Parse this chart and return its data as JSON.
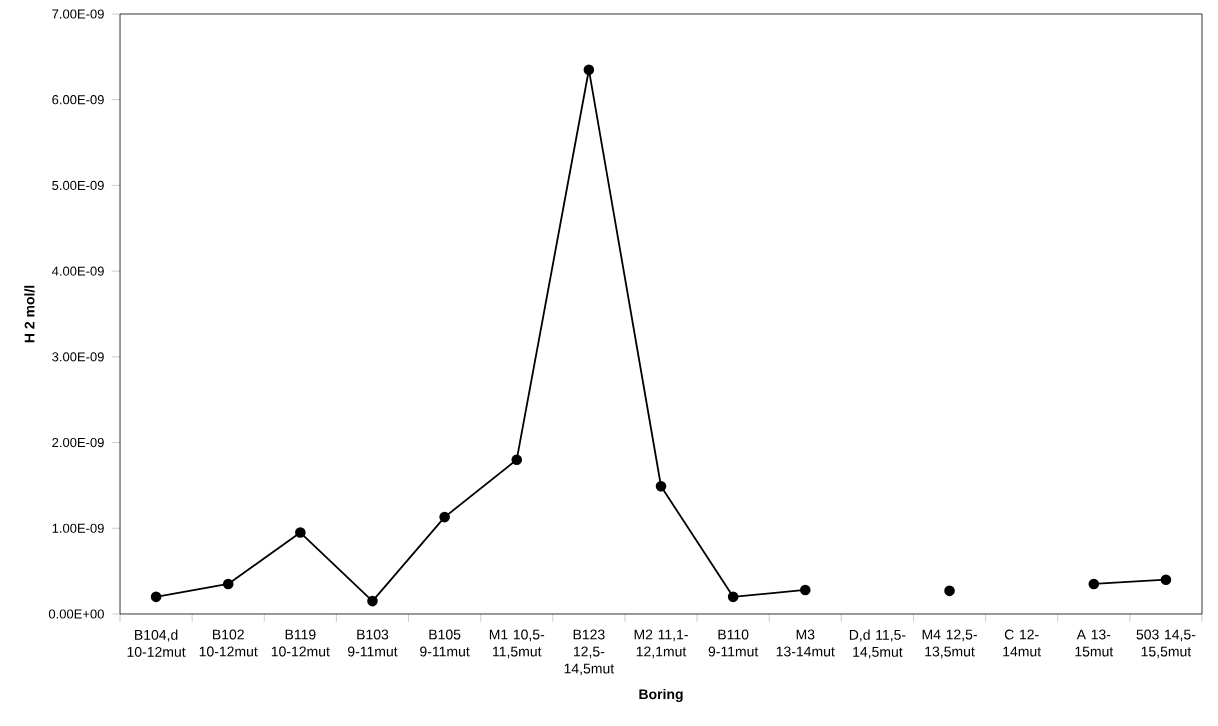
{
  "chart_data": {
    "type": "line",
    "xlabel": "Boring",
    "ylabel": "H 2 mol/l",
    "categories": [
      "B104,d 10-12mut",
      "B102 10-12mut",
      "B119 10-12mut",
      "B103 9-11mut",
      "B105 9-11mut",
      "M1 10,5-11,5mut",
      "B123 12,5-14,5mut",
      "M2 11,1-12,1mut",
      "B110 9-11mut",
      "M3 13-14mut",
      "D,d 11,5-14,5mut",
      "M4 12,5-13,5mut",
      "C 12-14mut",
      "A 13-15mut",
      "503 14,5-15,5mut"
    ],
    "series": [
      {
        "color": "#000000",
        "values": [
          2e-10,
          3.5e-10,
          9.5e-10,
          1.5e-10,
          1.13e-09,
          1.8e-09,
          6.35e-09,
          1.49e-09,
          2e-10,
          2.8e-10,
          null,
          2.7e-10,
          null,
          3.5e-10,
          4e-10
        ]
      }
    ],
    "ylim": [
      0,
      7e-09
    ],
    "yticks": [
      {
        "value": 0,
        "label": "0.00E+00"
      },
      {
        "value": 1e-09,
        "label": "1.00E-09"
      },
      {
        "value": 2e-09,
        "label": "2.00E-09"
      },
      {
        "value": 3e-09,
        "label": "3.00E-09"
      },
      {
        "value": 4e-09,
        "label": "4.00E-09"
      },
      {
        "value": 5e-09,
        "label": "5.00E-09"
      },
      {
        "value": 6e-09,
        "label": "6.00E-09"
      },
      {
        "value": 7e-09,
        "label": "7.00E-09"
      }
    ],
    "grid": false,
    "marker": "circle",
    "line_style": "solid"
  }
}
